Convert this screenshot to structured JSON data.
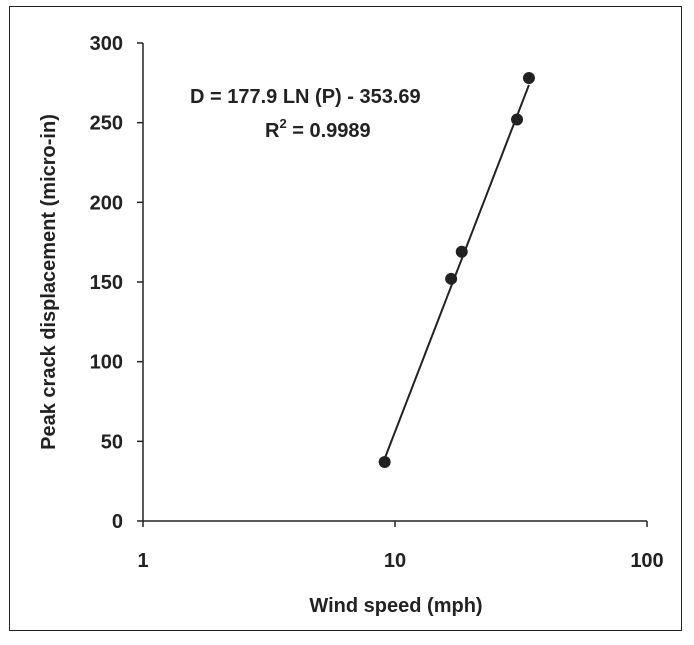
{
  "chart_data": {
    "type": "scatter",
    "xlabel": "Wind speed (mph)",
    "ylabel": "Peak crack displacement (micro-in)",
    "xscale": "log",
    "xlim": [
      1,
      100
    ],
    "ylim": [
      0,
      300
    ],
    "x_ticks": [
      1,
      10,
      100
    ],
    "x_tick_labels": [
      "1",
      "10",
      "100"
    ],
    "y_ticks": [
      0,
      50,
      100,
      150,
      200,
      250,
      300
    ],
    "y_tick_labels": [
      "0",
      "50",
      "100",
      "150",
      "200",
      "250",
      "300"
    ],
    "grid": false,
    "series": [
      {
        "x": [
          9.1,
          16.7,
          18.4,
          30.5,
          34.0
        ],
        "y": [
          37,
          152,
          169,
          252,
          278
        ],
        "marker": "circle",
        "color": "#222222"
      }
    ],
    "trendline": {
      "type": "logarithmic",
      "coef_a": 177.9,
      "coef_b": -353.69,
      "x_range": [
        9.1,
        34.0
      ],
      "color": "#222222"
    },
    "annotations": {
      "equation": "D = 177.9 LN (P) - 353.69",
      "r2_prefix": "R",
      "r2_superscript": "2",
      "r2_value": " = 0.9989"
    }
  }
}
